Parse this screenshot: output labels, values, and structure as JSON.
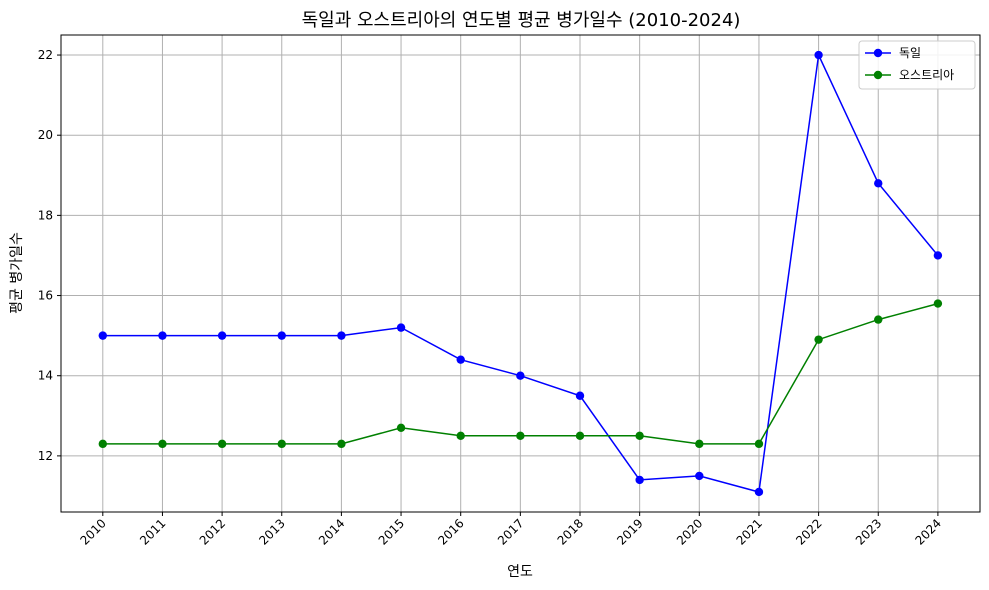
{
  "chart_data": {
    "type": "line",
    "title": "독일과 오스트리아의 연도별 평균 병가일수 (2010-2024)",
    "xlabel": "연도",
    "ylabel": "평균 병가일수",
    "categories": [
      "2010",
      "2011",
      "2012",
      "2013",
      "2014",
      "2015",
      "2016",
      "2017",
      "2018",
      "2019",
      "2020",
      "2021",
      "2022",
      "2023",
      "2024"
    ],
    "ylim": [
      10.6,
      22.5
    ],
    "yticks": [
      "12",
      "14",
      "16",
      "18",
      "20",
      "22"
    ],
    "grid": true,
    "legend_position": "top-right",
    "series": [
      {
        "name": "독일",
        "color": "#0000ff",
        "values": [
          15.0,
          15.0,
          15.0,
          15.0,
          15.0,
          15.2,
          14.4,
          14.0,
          13.5,
          11.4,
          11.5,
          11.1,
          22.0,
          18.8,
          17.0
        ]
      },
      {
        "name": "오스트리아",
        "color": "#008000",
        "values": [
          12.3,
          12.3,
          12.3,
          12.3,
          12.3,
          12.7,
          12.5,
          12.5,
          12.5,
          12.5,
          12.3,
          12.3,
          14.9,
          15.4,
          15.8
        ]
      }
    ]
  }
}
